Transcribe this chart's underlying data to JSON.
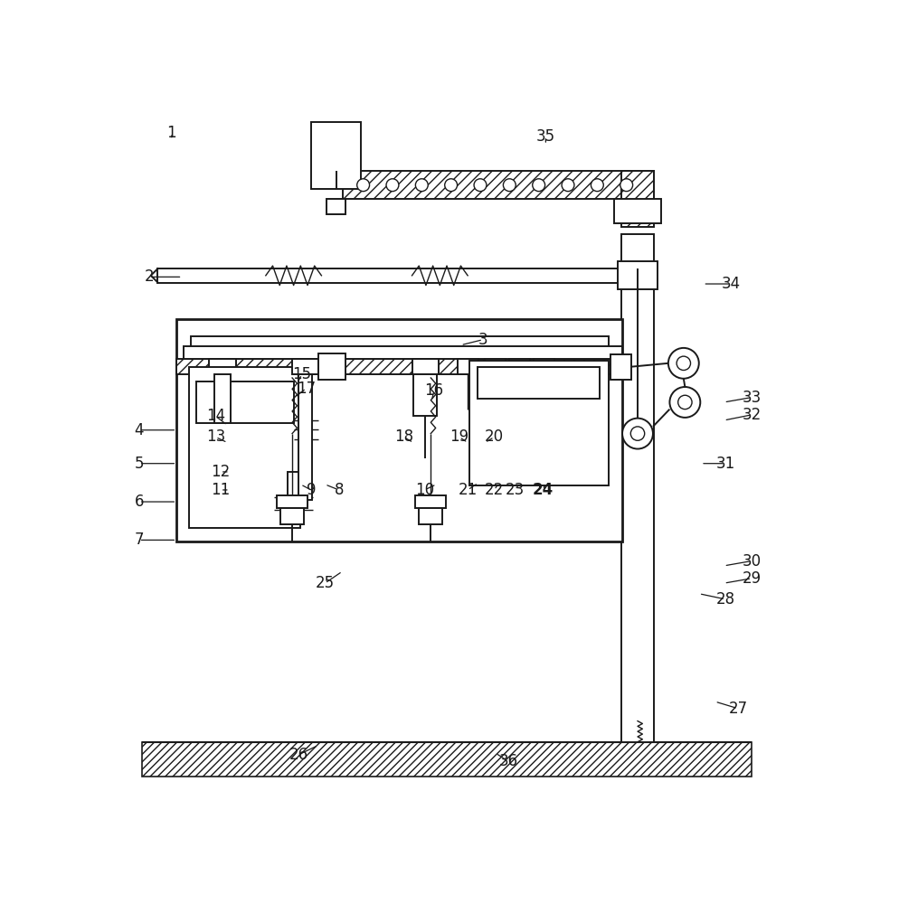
{
  "bg_color": "#ffffff",
  "line_color": "#1a1a1a",
  "lw": 1.4,
  "lw_thin": 1.0,
  "lw_thick": 2.0,
  "label_fontsize": 12,
  "bold_labels": [
    "24"
  ],
  "labels": {
    "1": [
      0.085,
      0.965,
      0.085,
      0.955
    ],
    "2": [
      0.053,
      0.758,
      0.1,
      0.758
    ],
    "3": [
      0.532,
      0.668,
      0.5,
      0.66
    ],
    "4": [
      0.038,
      0.538,
      0.092,
      0.538
    ],
    "5": [
      0.038,
      0.49,
      0.092,
      0.49
    ],
    "6": [
      0.038,
      0.435,
      0.092,
      0.435
    ],
    "7": [
      0.038,
      0.38,
      0.092,
      0.38
    ],
    "8": [
      0.325,
      0.452,
      0.305,
      0.46
    ],
    "9": [
      0.285,
      0.452,
      0.27,
      0.46
    ],
    "10": [
      0.448,
      0.452,
      0.465,
      0.46
    ],
    "11": [
      0.155,
      0.452,
      0.168,
      0.452
    ],
    "12": [
      0.155,
      0.478,
      0.168,
      0.478
    ],
    "13": [
      0.148,
      0.528,
      0.165,
      0.52
    ],
    "14": [
      0.148,
      0.558,
      0.165,
      0.545
    ],
    "15": [
      0.272,
      0.618,
      0.265,
      0.605
    ],
    "16": [
      0.462,
      0.595,
      0.458,
      0.58
    ],
    "17": [
      0.278,
      0.598,
      0.262,
      0.585
    ],
    "18": [
      0.418,
      0.528,
      0.432,
      0.52
    ],
    "19": [
      0.498,
      0.528,
      0.51,
      0.52
    ],
    "20": [
      0.548,
      0.528,
      0.535,
      0.52
    ],
    "21": [
      0.51,
      0.452,
      0.525,
      0.462
    ],
    "22": [
      0.548,
      0.452,
      0.555,
      0.462
    ],
    "23": [
      0.578,
      0.452,
      0.585,
      0.462
    ],
    "24": [
      0.618,
      0.452,
      0.622,
      0.462
    ],
    "25": [
      0.305,
      0.318,
      0.33,
      0.335
    ],
    "26": [
      0.268,
      0.072,
      0.295,
      0.085
    ],
    "27": [
      0.898,
      0.138,
      0.865,
      0.148
    ],
    "28": [
      0.88,
      0.295,
      0.842,
      0.303
    ],
    "29": [
      0.918,
      0.325,
      0.878,
      0.318
    ],
    "30": [
      0.918,
      0.35,
      0.878,
      0.343
    ],
    "31": [
      0.88,
      0.49,
      0.845,
      0.49
    ],
    "32": [
      0.918,
      0.56,
      0.878,
      0.552
    ],
    "33": [
      0.918,
      0.585,
      0.878,
      0.578
    ],
    "34": [
      0.888,
      0.748,
      0.848,
      0.748
    ],
    "35": [
      0.622,
      0.96,
      0.622,
      0.948
    ],
    "36": [
      0.568,
      0.062,
      0.55,
      0.074
    ]
  }
}
